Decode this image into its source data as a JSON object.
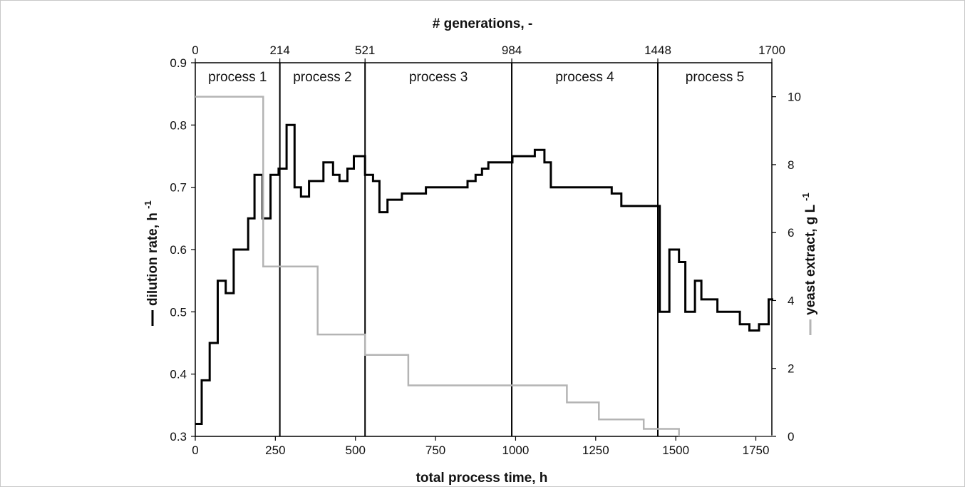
{
  "chart_data": {
    "type": "line",
    "top_axis_title": "# generations, -",
    "top_axis_ticks": [
      "0",
      "214",
      "521",
      "984",
      "1448",
      "1700"
    ],
    "xlabel": "total process time, h",
    "ylabel_left": "dilution rate, h-1",
    "ylabel_left_text": "dilution rate, h",
    "ylabel_left_sup": "-1",
    "ylabel_right": "yeast extract, g L-1",
    "ylabel_right_text": "yeast extract, g L",
    "ylabel_right_sup": "-1",
    "xlim": [
      0,
      1800
    ],
    "ylim_left": [
      0.3,
      0.9
    ],
    "ylim_right": [
      0,
      11
    ],
    "x_ticks": [
      0,
      250,
      500,
      750,
      1000,
      1250,
      1500,
      1750
    ],
    "y_left_ticks": [
      0.3,
      0.4,
      0.5,
      0.6,
      0.7,
      0.8,
      0.9
    ],
    "y_right_ticks": [
      0,
      2,
      4,
      6,
      8,
      10
    ],
    "grid": false,
    "process_boundaries": [
      264,
      530,
      988,
      1444
    ],
    "process_labels": [
      "process 1",
      "process 2",
      "process 3",
      "process 4",
      "process 5"
    ],
    "series": [
      {
        "name": "dilution rate",
        "axis": "left",
        "color": "#000000",
        "step_points": [
          [
            0,
            0.32
          ],
          [
            20,
            0.32
          ],
          [
            20,
            0.39
          ],
          [
            45,
            0.39
          ],
          [
            45,
            0.45
          ],
          [
            70,
            0.45
          ],
          [
            70,
            0.55
          ],
          [
            95,
            0.55
          ],
          [
            95,
            0.53
          ],
          [
            120,
            0.53
          ],
          [
            120,
            0.6
          ],
          [
            165,
            0.6
          ],
          [
            165,
            0.65
          ],
          [
            185,
            0.65
          ],
          [
            185,
            0.72
          ],
          [
            210,
            0.72
          ],
          [
            210,
            0.65
          ],
          [
            235,
            0.65
          ],
          [
            235,
            0.72
          ],
          [
            260,
            0.72
          ],
          [
            260,
            0.73
          ],
          [
            285,
            0.73
          ],
          [
            285,
            0.8
          ],
          [
            310,
            0.8
          ],
          [
            310,
            0.7
          ],
          [
            330,
            0.7
          ],
          [
            330,
            0.685
          ],
          [
            355,
            0.685
          ],
          [
            355,
            0.71
          ],
          [
            400,
            0.71
          ],
          [
            400,
            0.74
          ],
          [
            430,
            0.74
          ],
          [
            430,
            0.72
          ],
          [
            450,
            0.72
          ],
          [
            450,
            0.71
          ],
          [
            475,
            0.71
          ],
          [
            475,
            0.73
          ],
          [
            495,
            0.73
          ],
          [
            495,
            0.75
          ],
          [
            530,
            0.75
          ],
          [
            530,
            0.72
          ],
          [
            555,
            0.72
          ],
          [
            555,
            0.71
          ],
          [
            575,
            0.71
          ],
          [
            575,
            0.66
          ],
          [
            600,
            0.66
          ],
          [
            600,
            0.68
          ],
          [
            645,
            0.68
          ],
          [
            645,
            0.69
          ],
          [
            720,
            0.69
          ],
          [
            720,
            0.7
          ],
          [
            850,
            0.7
          ],
          [
            850,
            0.71
          ],
          [
            875,
            0.71
          ],
          [
            875,
            0.72
          ],
          [
            895,
            0.72
          ],
          [
            895,
            0.73
          ],
          [
            915,
            0.73
          ],
          [
            915,
            0.74
          ],
          [
            990,
            0.74
          ],
          [
            990,
            0.75
          ],
          [
            1060,
            0.75
          ],
          [
            1060,
            0.76
          ],
          [
            1090,
            0.76
          ],
          [
            1090,
            0.74
          ],
          [
            1110,
            0.74
          ],
          [
            1110,
            0.7
          ],
          [
            1300,
            0.7
          ],
          [
            1300,
            0.69
          ],
          [
            1330,
            0.69
          ],
          [
            1330,
            0.67
          ],
          [
            1450,
            0.67
          ],
          [
            1450,
            0.5
          ],
          [
            1480,
            0.5
          ],
          [
            1480,
            0.6
          ],
          [
            1510,
            0.6
          ],
          [
            1510,
            0.58
          ],
          [
            1530,
            0.58
          ],
          [
            1530,
            0.5
          ],
          [
            1560,
            0.5
          ],
          [
            1560,
            0.55
          ],
          [
            1580,
            0.55
          ],
          [
            1580,
            0.52
          ],
          [
            1630,
            0.52
          ],
          [
            1630,
            0.5
          ],
          [
            1700,
            0.5
          ],
          [
            1700,
            0.48
          ],
          [
            1730,
            0.48
          ],
          [
            1730,
            0.47
          ],
          [
            1760,
            0.47
          ],
          [
            1760,
            0.48
          ],
          [
            1790,
            0.48
          ],
          [
            1790,
            0.52
          ],
          [
            1820,
            0.52
          ]
        ]
      },
      {
        "name": "yeast extract",
        "axis": "right",
        "color": "#b4b4b4",
        "step_points": [
          [
            0,
            10
          ],
          [
            212,
            10
          ],
          [
            212,
            5
          ],
          [
            382,
            5
          ],
          [
            382,
            3
          ],
          [
            530,
            3
          ],
          [
            530,
            2.4
          ],
          [
            665,
            2.4
          ],
          [
            665,
            1.5
          ],
          [
            1160,
            1.5
          ],
          [
            1160,
            1.0
          ],
          [
            1260,
            1.0
          ],
          [
            1260,
            0.5
          ],
          [
            1400,
            0.5
          ],
          [
            1400,
            0.22
          ],
          [
            1510,
            0.22
          ],
          [
            1510,
            0
          ],
          [
            1820,
            0
          ]
        ]
      }
    ]
  }
}
